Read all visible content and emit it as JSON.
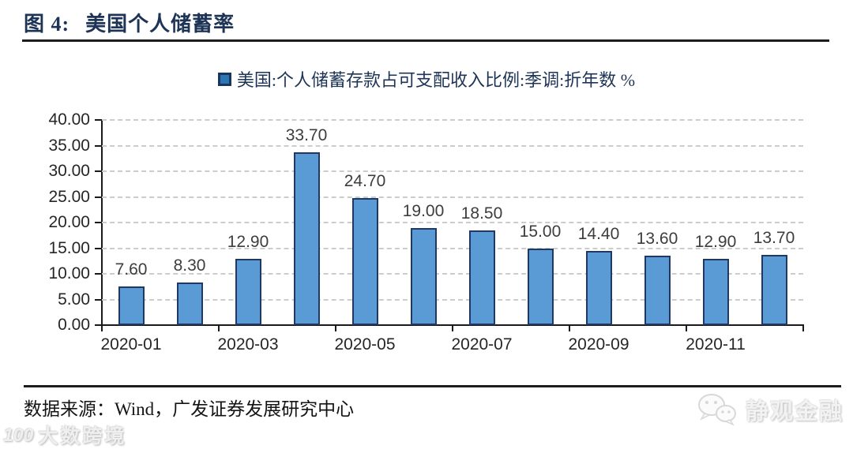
{
  "title": {
    "figure_label": "图 4:",
    "text": "美国个人储蓄率"
  },
  "legend": {
    "label": "美国:个人储蓄存款占可支配收入比例:季调:折年数 %"
  },
  "chart_data": {
    "type": "bar",
    "title": "美国个人储蓄率",
    "series_name": "美国:个人储蓄存款占可支配收入比例:季调:折年数 %",
    "values": [
      7.6,
      8.3,
      12.9,
      33.7,
      24.7,
      19.0,
      18.5,
      15.0,
      14.4,
      13.6,
      12.9,
      13.7
    ],
    "data_labels": [
      "7.60",
      "8.30",
      "12.90",
      "33.70",
      "24.70",
      "19.00",
      "18.50",
      "15.00",
      "14.40",
      "13.60",
      "12.90",
      "13.70"
    ],
    "x_tick_labels": [
      "2020-01",
      "2020-03",
      "2020-05",
      "2020-07",
      "2020-09",
      "2020-11"
    ],
    "y_tick_labels": [
      "0.00",
      "5.00",
      "10.00",
      "15.00",
      "20.00",
      "25.00",
      "30.00",
      "35.00",
      "40.00"
    ],
    "ylim": [
      0,
      40
    ],
    "y_step": 5,
    "grid": "horizontal-dashed",
    "legend_position": "top-center",
    "bar_fill": "#5B9BD5",
    "bar_border": "#1F3864",
    "xlabel": "",
    "ylabel": ""
  },
  "footer": {
    "source": "数据来源：Wind，广发证券发展研究中心"
  },
  "watermarks": {
    "bottom_left_logo": "100",
    "bottom_left": "大数跨境",
    "bottom_right": "静观金融"
  }
}
